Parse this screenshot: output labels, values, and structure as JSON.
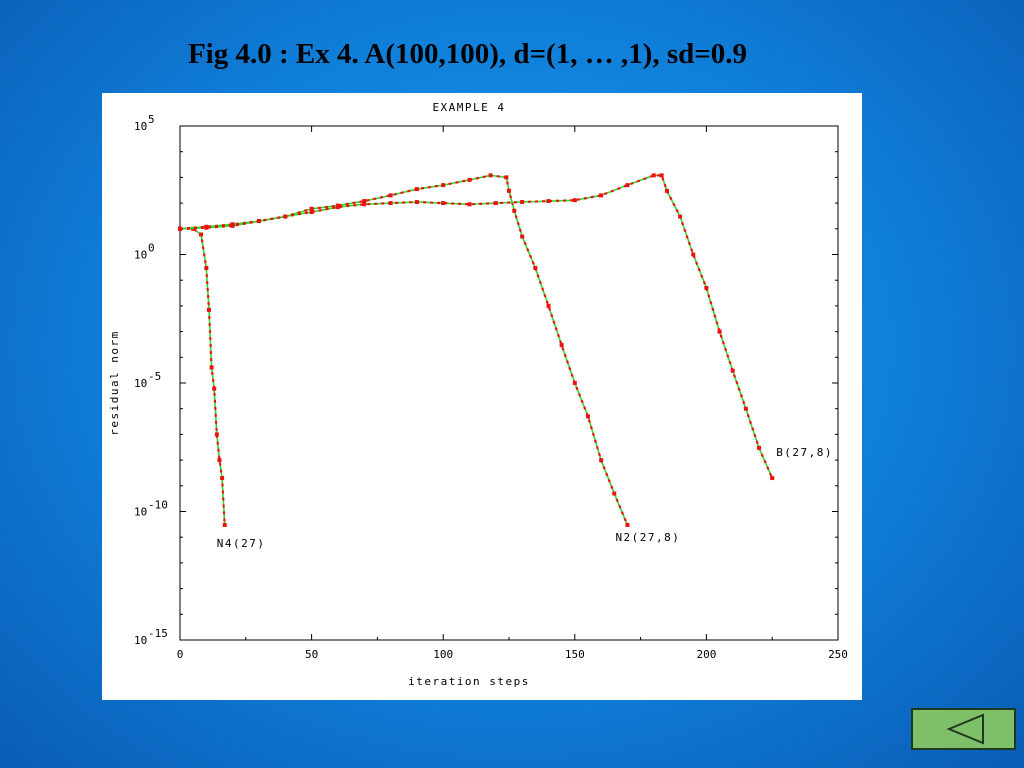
{
  "slide": {
    "title": "Fig 4.0 : Ex 4. A(100,100), d=(1, … ,1), sd=0.9"
  },
  "navigation": {
    "back_icon": "triangle-left-icon"
  },
  "colors": {
    "background": "#0f7ed8",
    "curve": "#22dd22",
    "marker": "#ee1111",
    "button": "#7fbf6a"
  },
  "chart_data": {
    "type": "line",
    "title": "EXAMPLE 4",
    "xlabel": "iteration steps",
    "ylabel": "residual norm",
    "xlim": [
      0,
      250
    ],
    "ylim": [
      1e-15,
      100000
    ],
    "yscale": "log",
    "grid": false,
    "x_ticks": [
      {
        "value": 0,
        "label": "0"
      },
      {
        "value": 50,
        "label": "50"
      },
      {
        "value": 100,
        "label": "100"
      },
      {
        "value": 150,
        "label": "150"
      },
      {
        "value": 200,
        "label": "200"
      },
      {
        "value": 250,
        "label": "250"
      }
    ],
    "y_ticks": [
      {
        "value": 100000,
        "base": "10",
        "exp": "5"
      },
      {
        "value": 1,
        "base": "10",
        "exp": "0"
      },
      {
        "value": 1e-05,
        "base": "10",
        "exp": "-5"
      },
      {
        "value": 1e-10,
        "base": "10",
        "exp": "-10"
      },
      {
        "value": 1e-15,
        "base": "10",
        "exp": "-15"
      }
    ],
    "series": [
      {
        "name": "N4(27)",
        "x": [
          0,
          5,
          8,
          10,
          11,
          12,
          13,
          14,
          15,
          16,
          17
        ],
        "y": [
          10,
          10,
          6,
          0.3,
          0.007,
          4e-05,
          6e-06,
          1e-07,
          1e-08,
          2e-09,
          3e-11
        ]
      },
      {
        "name": "N2(27,8)",
        "x": [
          0,
          10,
          20,
          30,
          40,
          50,
          60,
          70,
          80,
          90,
          100,
          110,
          118,
          124,
          125,
          127,
          130,
          135,
          140,
          145,
          150,
          155,
          160,
          165,
          170
        ],
        "y": [
          10,
          11,
          13,
          20,
          30,
          60,
          80,
          120,
          200,
          350,
          500,
          800,
          1200,
          1000,
          300,
          50,
          5,
          0.3,
          0.01,
          0.0003,
          1e-05,
          5e-07,
          1e-08,
          5e-10,
          3e-11
        ]
      },
      {
        "name": "B(27,8)",
        "x": [
          0,
          10,
          20,
          30,
          40,
          50,
          60,
          70,
          80,
          90,
          100,
          110,
          120,
          130,
          140,
          150,
          160,
          170,
          180,
          183,
          185,
          190,
          195,
          200,
          205,
          210,
          215,
          220,
          225
        ],
        "y": [
          10,
          12,
          15,
          20,
          30,
          45,
          70,
          90,
          100,
          110,
          100,
          90,
          100,
          110,
          120,
          130,
          200,
          500,
          1200,
          1200,
          300,
          30,
          1,
          0.05,
          0.001,
          3e-05,
          1e-06,
          3e-08,
          2e-09
        ]
      }
    ]
  }
}
